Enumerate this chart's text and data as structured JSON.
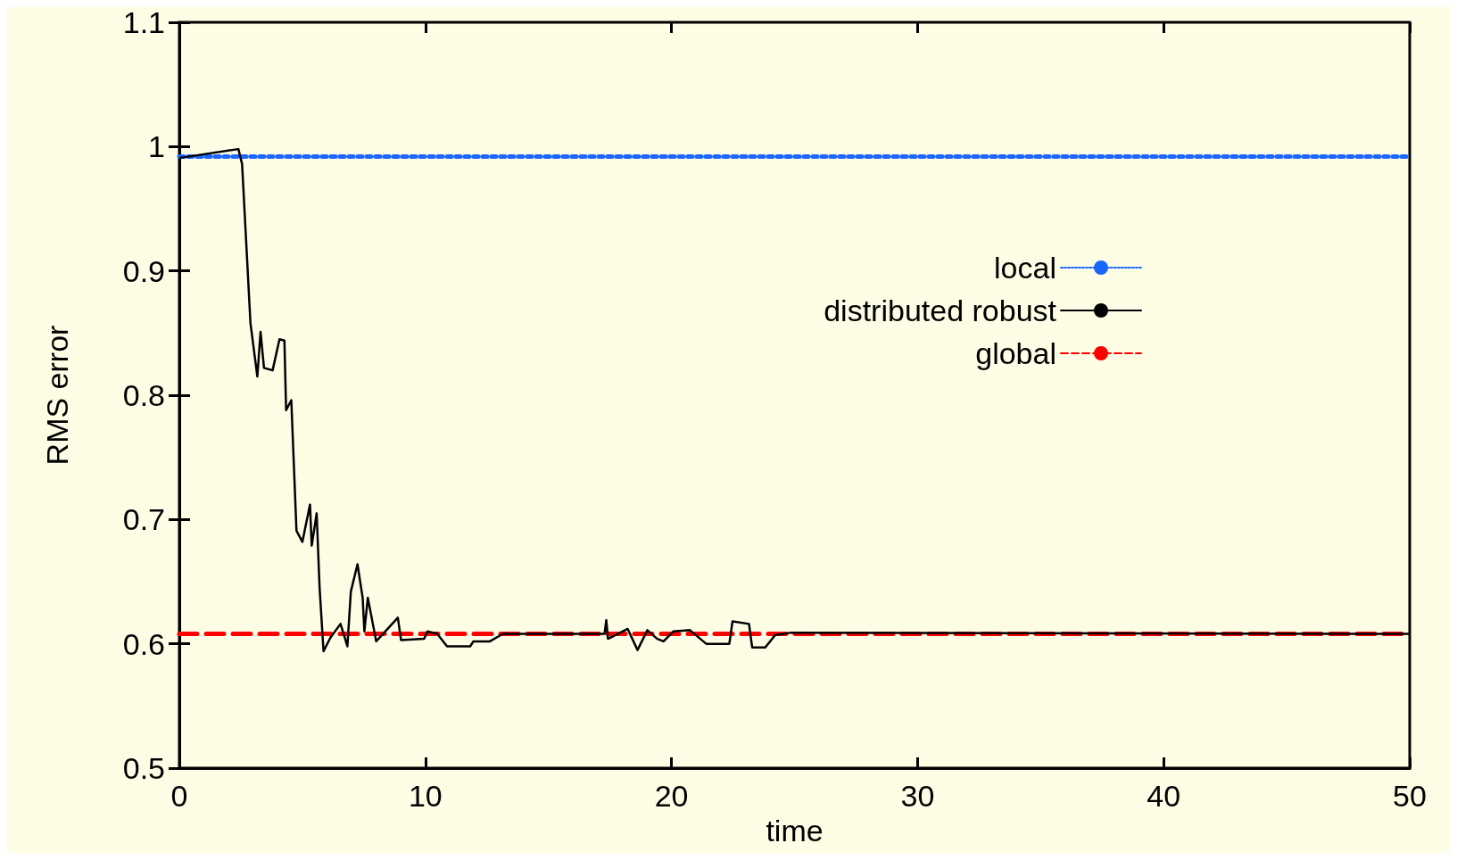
{
  "chart_data": {
    "type": "line",
    "xlabel": "time",
    "ylabel": "RMS error",
    "xlim": [
      0,
      50
    ],
    "xticks": [
      0,
      10,
      20,
      30,
      40,
      50
    ],
    "ylim": [
      0.5,
      1.1
    ],
    "yticks": [
      0.5,
      0.6,
      0.7,
      0.8,
      0.9,
      1,
      1.1
    ],
    "grid": false,
    "legend": "top right",
    "marker": "none",
    "series": [
      {
        "name": "local",
        "color": "#1a66ff",
        "line_style": "dotted",
        "x": [
          0,
          50
        ],
        "values": [
          0.992,
          0.992
        ]
      },
      {
        "name": "distributed robust",
        "color": "#000000",
        "line_style": "solid",
        "x": [
          0.05,
          2.4,
          2.55,
          2.89,
          3.17,
          3.3,
          3.44,
          3.79,
          4.07,
          4.27,
          4.34,
          4.55,
          4.76,
          5.0,
          5.31,
          5.38,
          5.58,
          5.7,
          5.86,
          6.14,
          6.55,
          6.83,
          6.97,
          7.24,
          7.45,
          7.52,
          7.66,
          8.0,
          8.88,
          9.01,
          9.95,
          10.08,
          10.48,
          10.88,
          11.82,
          11.95,
          12.62,
          13.15,
          17.28,
          17.35,
          17.42,
          18.22,
          18.62,
          19.02,
          19.42,
          19.68,
          20.08,
          20.75,
          21.41,
          22.35,
          22.48,
          23.15,
          23.28,
          23.81,
          24.21,
          24.87,
          50
        ],
        "values": [
          0.991,
          0.998,
          0.986,
          0.858,
          0.815,
          0.851,
          0.822,
          0.82,
          0.845,
          0.844,
          0.788,
          0.796,
          0.691,
          0.682,
          0.712,
          0.679,
          0.705,
          0.645,
          0.594,
          0.605,
          0.616,
          0.598,
          0.642,
          0.664,
          0.637,
          0.61,
          0.637,
          0.602,
          0.621,
          0.603,
          0.604,
          0.61,
          0.608,
          0.598,
          0.598,
          0.602,
          0.602,
          0.608,
          0.608,
          0.619,
          0.604,
          0.612,
          0.595,
          0.611,
          0.604,
          0.602,
          0.61,
          0.611,
          0.6,
          0.6,
          0.618,
          0.616,
          0.597,
          0.597,
          0.607,
          0.609,
          0.608
        ]
      },
      {
        "name": "global",
        "color": "#ff0000",
        "line_style": "dashed",
        "x": [
          0,
          50
        ],
        "values": [
          0.608,
          0.608
        ]
      }
    ]
  }
}
